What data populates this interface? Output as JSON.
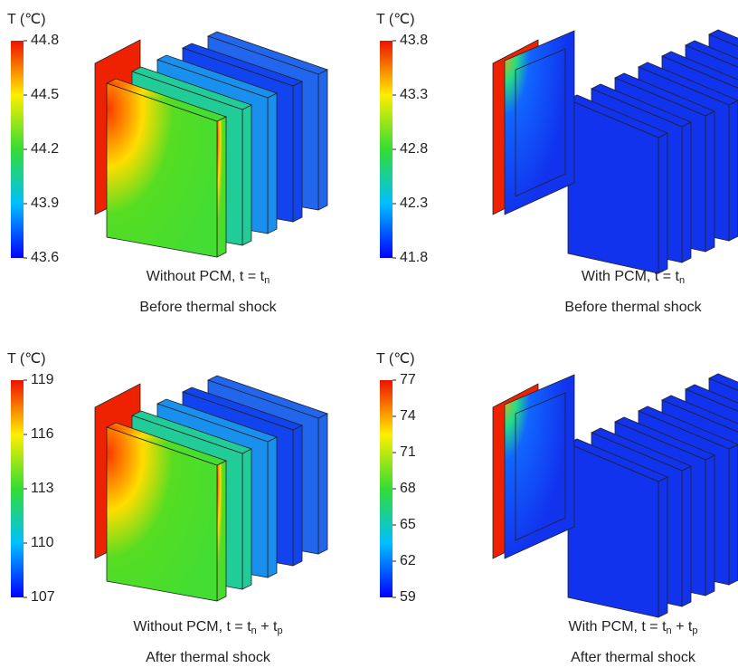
{
  "panels": [
    {
      "colorbar_title": "T (℃)",
      "ticks": [
        44.8,
        44.5,
        44.2,
        43.9,
        43.6
      ],
      "caption_line1": [
        {
          "text": "Without PCM,  t = t"
        },
        {
          "text": "n",
          "sub": true
        }
      ],
      "caption_line2": "Before thermal shock"
    },
    {
      "colorbar_title": "T (℃)",
      "ticks": [
        43.8,
        43.3,
        42.8,
        42.3,
        41.8
      ],
      "caption_line1": [
        {
          "text": "With PCM,  t = t"
        },
        {
          "text": "n",
          "sub": true
        }
      ],
      "caption_line2": "Before thermal shock"
    },
    {
      "colorbar_title": "T (℃)",
      "ticks": [
        119,
        116,
        113,
        110,
        107
      ],
      "caption_line1": [
        {
          "text": "Without PCM,  t = t"
        },
        {
          "text": "n",
          "sub": true
        },
        {
          "text": " + t"
        },
        {
          "text": "p",
          "sub": true
        }
      ],
      "caption_line2": "After thermal shock"
    },
    {
      "colorbar_title": "T (℃)",
      "ticks": [
        77,
        74,
        71,
        68,
        65,
        62,
        59
      ],
      "caption_line1": [
        {
          "text": "With PCM,  t = t"
        },
        {
          "text": "n",
          "sub": true
        },
        {
          "text": " + t"
        },
        {
          "text": "p",
          "sub": true
        }
      ],
      "caption_line2": "After thermal shock"
    }
  ]
}
